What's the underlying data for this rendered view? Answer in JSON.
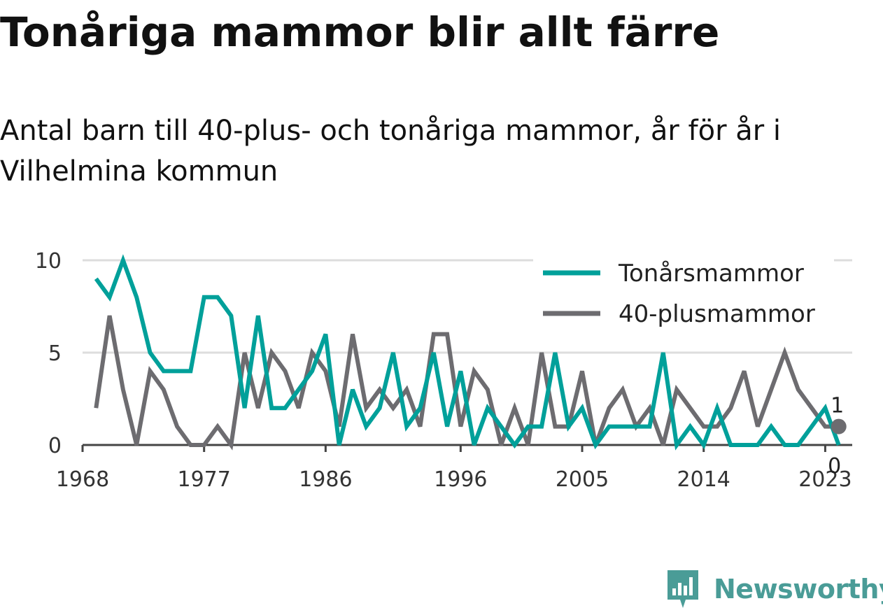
{
  "title": "Tonåriga mammor blir allt färre",
  "subtitle": "Antal barn till 40-plus- och tonåriga mammor, år för år i Vilhelmina kommun",
  "brand": {
    "name": "Newsworthy",
    "icon": "newsworthy-logo-icon",
    "color": "#4a9c97"
  },
  "chart_data": {
    "type": "line",
    "title": "",
    "xlabel": "",
    "ylabel": "",
    "xlim": [
      1968,
      2025
    ],
    "ylim": [
      0,
      10
    ],
    "x_ticks": [
      1968,
      1977,
      1986,
      1996,
      2005,
      2014,
      2023
    ],
    "y_ticks": [
      0,
      5,
      10
    ],
    "grid": "horizontal",
    "legend_position": "top-right",
    "x": [
      1969,
      1970,
      1971,
      1972,
      1973,
      1974,
      1975,
      1976,
      1977,
      1978,
      1979,
      1980,
      1981,
      1982,
      1983,
      1984,
      1985,
      1986,
      1987,
      1988,
      1989,
      1990,
      1991,
      1992,
      1993,
      1994,
      1995,
      1996,
      1997,
      1998,
      1999,
      2000,
      2001,
      2002,
      2003,
      2004,
      2005,
      2006,
      2007,
      2008,
      2009,
      2010,
      2011,
      2012,
      2013,
      2014,
      2015,
      2016,
      2017,
      2018,
      2019,
      2020,
      2021,
      2022,
      2023,
      2024
    ],
    "series": [
      {
        "name": "Tonårsmammor",
        "color": "#00a09a",
        "values": [
          9,
          8,
          10,
          8,
          5,
          4,
          4,
          4,
          8,
          8,
          7,
          2,
          7,
          2,
          2,
          3,
          4,
          6,
          0,
          3,
          1,
          2,
          5,
          1,
          2,
          5,
          1,
          4,
          0,
          2,
          1,
          0,
          1,
          1,
          5,
          1,
          2,
          0,
          1,
          1,
          1,
          1,
          5,
          0,
          1,
          0,
          2,
          0,
          0,
          0,
          1,
          0,
          0,
          1,
          2,
          0
        ],
        "end_label": "0"
      },
      {
        "name": "40-plusmammor",
        "color": "#6d6c70",
        "values": [
          2,
          7,
          3,
          0,
          4,
          3,
          1,
          0,
          0,
          1,
          0,
          5,
          2,
          5,
          4,
          2,
          5,
          4,
          1,
          6,
          2,
          3,
          2,
          3,
          1,
          6,
          6,
          1,
          4,
          3,
          0,
          2,
          0,
          5,
          1,
          1,
          4,
          0,
          2,
          3,
          1,
          2,
          0,
          3,
          2,
          1,
          1,
          2,
          4,
          1,
          3,
          5,
          3,
          2,
          1,
          1
        ],
        "end_label": "1"
      }
    ]
  }
}
